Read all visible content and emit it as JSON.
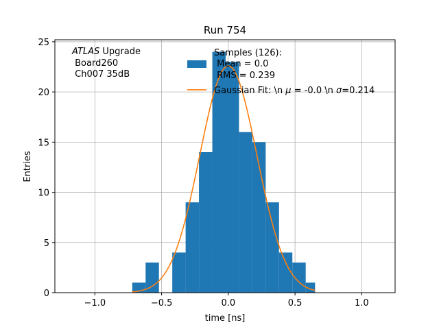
{
  "chart_data": {
    "type": "bar",
    "title": "Run 754",
    "xlabel": "time [ns]",
    "ylabel": "Entries",
    "xlim": [
      -1.3,
      1.25
    ],
    "ylim": [
      0,
      25.2
    ],
    "xticks": [
      -1.0,
      -0.5,
      0.0,
      0.5,
      1.0
    ],
    "xtick_labels": [
      "−1.0",
      "−0.5",
      "0.0",
      "0.5",
      "1.0"
    ],
    "yticks": [
      0,
      5,
      10,
      15,
      20,
      25
    ],
    "ytick_labels": [
      "0",
      "5",
      "10",
      "15",
      "20",
      "25"
    ],
    "grid": true,
    "annotation": {
      "lines": [
        {
          "italic": "ATLAS",
          "text": " Upgrade"
        },
        {
          "italic": "",
          "text": " Board260"
        },
        {
          "italic": "",
          "text": " Ch007 35dB"
        }
      ]
    },
    "histogram": {
      "name": "Samples (126):\n Mean = 0.0\n RMS = 0.239",
      "color": "#1f77b4",
      "bin_edges": [
        -0.72,
        -0.62,
        -0.52,
        -0.42,
        -0.32,
        -0.22,
        -0.12,
        -0.02,
        0.08,
        0.18,
        0.28,
        0.38,
        0.48,
        0.58,
        0.65
      ],
      "counts": [
        1,
        3,
        0,
        4,
        9,
        14,
        24,
        23,
        16,
        15,
        9,
        4,
        3,
        1
      ]
    },
    "fit": {
      "name": "Gaussian Fit: \\n μ = -0.0 \\n σ=0.214",
      "color": "#ff7f0e",
      "mu": 0.0,
      "sigma": 0.214,
      "amplitude": 22.6,
      "x_range": [
        -0.72,
        0.65
      ]
    },
    "legend_position": "top-right",
    "legend": {
      "hist_lines": [
        "Samples (126):",
        " Mean = 0.0",
        " RMS = 0.239"
      ],
      "fit_pre": "Gaussian Fit: \\n ",
      "fit_mu": "μ",
      "fit_mid": " = -0.0 \\n ",
      "fit_sigma": "σ",
      "fit_post": "=0.214"
    }
  }
}
